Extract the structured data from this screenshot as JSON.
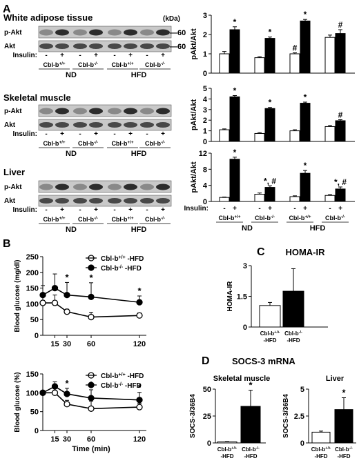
{
  "panel_letters": {
    "A": "A",
    "B": "B",
    "C": "C",
    "D": "D"
  },
  "blots": {
    "kda": "(kDa)",
    "marker": "60",
    "insulin_label": "Insulin:",
    "minus": "-",
    "plus": "+",
    "row_pakt": "p-Akt",
    "row_akt": "Akt",
    "groups": [
      "Cbl-b+/+",
      "Cbl-b-/-",
      "Cbl-b+/+",
      "Cbl-b-/-"
    ],
    "diets": [
      "ND",
      "HFD"
    ],
    "tissues": [
      {
        "title": "White adipose tissue"
      },
      {
        "title": "Skeletal muscle"
      },
      {
        "title": "Liver"
      }
    ]
  },
  "chart_data": [
    {
      "id": "A-wat",
      "type": "bar",
      "ylabel": "pAkt/Akt",
      "ylim": [
        0,
        3
      ],
      "ticks": [
        0,
        1,
        2,
        3
      ],
      "groups": [
        "Cbl-b+/+ ND",
        "Cbl-b-/- ND",
        "Cbl-b+/+ HFD",
        "Cbl-b-/- HFD"
      ],
      "series": [
        {
          "name": "-",
          "values": [
            1.0,
            0.8,
            1.0,
            1.85
          ],
          "err": [
            0.12,
            0.05,
            0.05,
            0.12
          ]
        },
        {
          "name": "+",
          "values": [
            2.25,
            1.8,
            2.7,
            2.05
          ],
          "err": [
            0.15,
            0.07,
            0.08,
            0.2
          ]
        }
      ],
      "annotations": [
        {
          "bar": "1-1",
          "text": "*"
        },
        {
          "bar": "1-2",
          "text": "*"
        },
        {
          "bar": "1-3",
          "text": "*"
        },
        {
          "bar": "0-3",
          "text": "#"
        },
        {
          "bar": "1-4",
          "text": "#"
        }
      ]
    },
    {
      "id": "A-sm",
      "type": "bar",
      "ylabel": "pAkt/Akt",
      "ylim": [
        0,
        5
      ],
      "ticks": [
        0,
        1,
        2,
        3,
        4,
        5
      ],
      "groups": [
        "Cbl-b+/+ ND",
        "Cbl-b-/- ND",
        "Cbl-b+/+ HFD",
        "Cbl-b-/- HFD"
      ],
      "series": [
        {
          "name": "-",
          "values": [
            1.1,
            0.75,
            1.0,
            1.4
          ],
          "err": [
            0.08,
            0.08,
            0.1,
            0.1
          ]
        },
        {
          "name": "+",
          "values": [
            4.2,
            3.1,
            3.6,
            1.95
          ],
          "err": [
            0.12,
            0.1,
            0.1,
            0.1
          ]
        }
      ],
      "annotations": [
        {
          "bar": "1-1",
          "text": "*"
        },
        {
          "bar": "1-2",
          "text": "*"
        },
        {
          "bar": "1-3",
          "text": "*"
        },
        {
          "bar": "1-4",
          "text": "#"
        }
      ]
    },
    {
      "id": "A-liver",
      "type": "bar",
      "ylabel": "pAkt/Akt",
      "ylim": [
        0,
        12
      ],
      "ticks": [
        0,
        4,
        8,
        12
      ],
      "groups": [
        "Cbl-b+/+ ND",
        "Cbl-b-/- ND",
        "Cbl-b+/+ HFD",
        "Cbl-b-/- HFD"
      ],
      "series": [
        {
          "name": "-",
          "values": [
            1.0,
            1.8,
            1.2,
            1.5
          ],
          "err": [
            0.1,
            0.3,
            0.2,
            0.2
          ]
        },
        {
          "name": "+",
          "values": [
            10.5,
            3.5,
            7.0,
            3.1
          ],
          "err": [
            0.5,
            0.4,
            0.7,
            0.5
          ]
        }
      ],
      "annotations": [
        {
          "bar": "1-1",
          "text": "*"
        },
        {
          "bar": "1-2",
          "text": "*, #"
        },
        {
          "bar": "1-3",
          "text": "*"
        },
        {
          "bar": "1-4",
          "text": "*, #"
        }
      ],
      "xlabels": {
        "insulin": "Insulin:",
        "minus": "-",
        "plus": "+",
        "groups": [
          "Cbl-b+/+",
          "Cbl-b-/-",
          "Cbl-b+/+",
          "Cbl-b-/-"
        ],
        "diets": [
          "ND",
          "HFD"
        ]
      }
    },
    {
      "id": "B-top",
      "type": "line",
      "ylabel": "Blood glucose (mg/dl)",
      "x": [
        0,
        15,
        30,
        60,
        120
      ],
      "xticks": [
        15,
        30,
        60,
        120
      ],
      "ylim": [
        0,
        250
      ],
      "yticks": [
        0,
        50,
        100,
        150,
        200,
        250
      ],
      "series": [
        {
          "name": "Cbl-b+/+ -HFD",
          "marker": "open",
          "values": [
            103,
            103,
            75,
            58,
            63
          ],
          "err": [
            8,
            25,
            8,
            15,
            8
          ]
        },
        {
          "name": "Cbl-b-/- -HFD",
          "marker": "filled",
          "values": [
            128,
            150,
            128,
            122,
            105
          ],
          "err": [
            30,
            45,
            40,
            45,
            20
          ]
        }
      ],
      "stars_at": [
        30,
        60,
        120
      ]
    },
    {
      "id": "B-bottom",
      "type": "line",
      "ylabel": "Blood glucose (%)",
      "xlabel": "Time (min)",
      "x": [
        0,
        15,
        30,
        60,
        120
      ],
      "xticks": [
        15,
        30,
        60,
        120
      ],
      "ylim": [
        0,
        150
      ],
      "yticks": [
        0,
        50,
        100,
        150
      ],
      "series": [
        {
          "name": "Cbl-b+/+ -HFD",
          "marker": "open",
          "values": [
            100,
            100,
            70,
            58,
            62
          ],
          "err": [
            0,
            12,
            10,
            20,
            10
          ]
        },
        {
          "name": "Cbl-b-/- -HFD",
          "marker": "filled",
          "values": [
            100,
            117,
            97,
            86,
            81
          ],
          "err": [
            0,
            12,
            15,
            22,
            20
          ]
        }
      ],
      "stars_at": [
        30,
        60,
        120
      ]
    },
    {
      "id": "C",
      "type": "bar",
      "title": "HOMA-IR",
      "ylabel": "HOMA-IR",
      "ylim": [
        0,
        3
      ],
      "ticks": [
        0,
        1.5,
        3
      ],
      "ticklabels": [
        "0",
        "1.5",
        "3"
      ],
      "categories": [
        "Cbl-b+/+ -HFD",
        "Cbl-b-/- -HFD"
      ],
      "values": [
        1.05,
        1.75
      ],
      "err": [
        0.15,
        1.1
      ],
      "fills": [
        "open",
        "filled"
      ]
    },
    {
      "id": "D-sm",
      "type": "bar",
      "subtitle": "Skeletal muscle",
      "ylabel": "SOCS-3/36B4",
      "ylim": [
        0,
        50
      ],
      "ticks": [
        0,
        25,
        50
      ],
      "ticklabels": [
        "0",
        "25",
        "50"
      ],
      "categories": [
        "Cbl-b+/+ -HFD",
        "Cbl-b-/- -HFD"
      ],
      "values": [
        1.0,
        34
      ],
      "err": [
        0.3,
        15
      ],
      "fills": [
        "open",
        "filled"
      ],
      "stars": [
        "",
        "*"
      ]
    },
    {
      "id": "D-liver",
      "type": "bar",
      "subtitle": "Liver",
      "ylabel": "SOCS-3/36B4",
      "ylim": [
        0,
        5
      ],
      "ticks": [
        0,
        2.5,
        5
      ],
      "ticklabels": [
        "0",
        "2.5",
        "5"
      ],
      "categories": [
        "Cbl-b+/+ -HFD",
        "Cbl-b-/- -HFD"
      ],
      "values": [
        1.0,
        3.1
      ],
      "err": [
        0.1,
        1.1
      ],
      "fills": [
        "open",
        "filled"
      ],
      "stars": [
        "",
        "*"
      ]
    }
  ],
  "panel_D_title": "SOCS-3 mRNA",
  "star": "*"
}
